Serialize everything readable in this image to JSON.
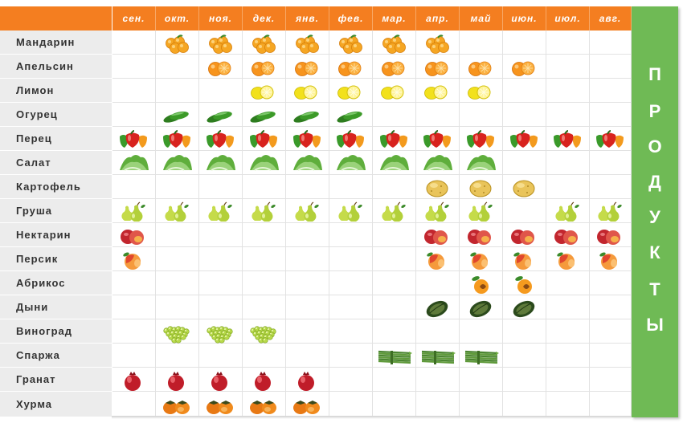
{
  "months": [
    "сен.",
    "окт.",
    "ноя.",
    "дек.",
    "янв.",
    "фев.",
    "мар.",
    "апр.",
    "май",
    "июн.",
    "июл.",
    "авг."
  ],
  "side_title": [
    "П",
    "Р",
    "О",
    "Д",
    "У",
    "К",
    "Т",
    "Ы"
  ],
  "colors": {
    "header": "#f47e20",
    "side": "#6fba55",
    "label_bg": "#ececec"
  },
  "rows": [
    {
      "name": "Мандарин",
      "icon": "mandarin-icon",
      "months": [
        1,
        2,
        3,
        4,
        5,
        6,
        7
      ]
    },
    {
      "name": "Апельсин",
      "icon": "orange-icon",
      "months": [
        2,
        3,
        4,
        5,
        6,
        7,
        8,
        9
      ]
    },
    {
      "name": "Лимон",
      "icon": "lemon-icon",
      "months": [
        3,
        4,
        5,
        6,
        7,
        8
      ]
    },
    {
      "name": "Огурец",
      "icon": "cucumber-icon",
      "months": [
        1,
        2,
        3,
        4,
        5
      ]
    },
    {
      "name": "Перец",
      "icon": "pepper-icon",
      "months": [
        0,
        1,
        2,
        3,
        4,
        5,
        6,
        7,
        8,
        9,
        10,
        11
      ]
    },
    {
      "name": "Салат",
      "icon": "lettuce-icon",
      "months": [
        0,
        1,
        2,
        3,
        4,
        5,
        6,
        7,
        8
      ]
    },
    {
      "name": "Картофель",
      "icon": "potato-icon",
      "months": [
        7,
        8,
        9
      ]
    },
    {
      "name": "Груша",
      "icon": "pear-icon",
      "months": [
        0,
        1,
        2,
        3,
        4,
        5,
        6,
        7,
        8,
        10,
        11
      ]
    },
    {
      "name": "Нектарин",
      "icon": "nectarine-icon",
      "months": [
        0,
        7,
        8,
        9,
        10,
        11
      ]
    },
    {
      "name": "Персик",
      "icon": "peach-icon",
      "months": [
        0,
        7,
        8,
        9,
        10,
        11
      ]
    },
    {
      "name": "Абрикос",
      "icon": "apricot-icon",
      "months": [
        8,
        9
      ]
    },
    {
      "name": "Дыни",
      "icon": "melon-icon",
      "months": [
        7,
        8,
        9
      ]
    },
    {
      "name": "Виноград",
      "icon": "grapes-icon",
      "months": [
        1,
        2,
        3
      ]
    },
    {
      "name": "Спаржа",
      "icon": "asparagus-icon",
      "months": [
        6,
        7,
        8
      ]
    },
    {
      "name": "Гранат",
      "icon": "pomegranate-icon",
      "months": [
        0,
        1,
        2,
        3,
        4
      ]
    },
    {
      "name": "Хурма",
      "icon": "persimmon-icon",
      "months": [
        1,
        2,
        3,
        4
      ]
    }
  ]
}
